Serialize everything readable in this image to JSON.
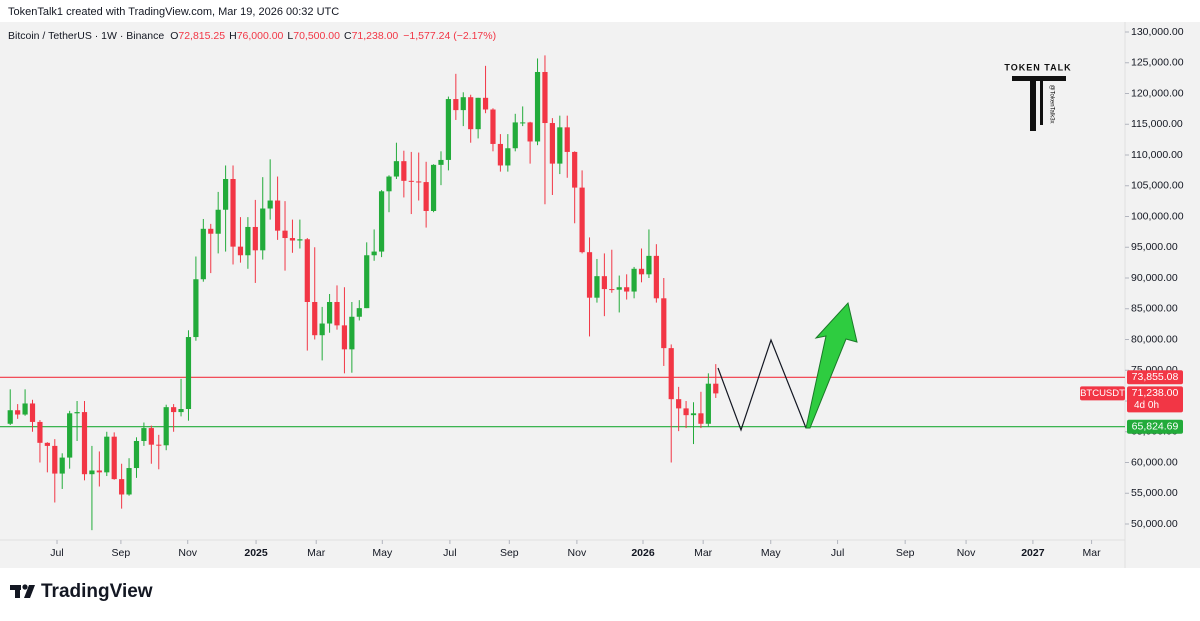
{
  "credit": "TokenTalk1 created with TradingView.com, Mar 19, 2026 00:32 UTC",
  "brand": "TradingView",
  "watermark": {
    "title": "TOKEN TALK",
    "handle": "@TokenTalk3x"
  },
  "chart_data": {
    "type": "candlestick",
    "title": "Bitcoin / TetherUS · 1W · Binance",
    "ohlc_legend": [
      {
        "key": "O",
        "text": "72,815.25"
      },
      {
        "key": "H",
        "text": "76,000.00"
      },
      {
        "key": "L",
        "text": "70,500.00"
      },
      {
        "key": "C",
        "text": "71,238.00"
      }
    ],
    "change": "−1,577.24 (−2.17%)",
    "up_color": "#22ab3a",
    "down_color": "#f23645",
    "open": [
      66300,
      68500,
      67800,
      69600,
      66600,
      63200,
      62700,
      58200,
      60800,
      68000,
      68200,
      58100,
      58700,
      58400,
      64200,
      57300,
      54800,
      59100,
      63500,
      65600,
      62900,
      62800,
      69000,
      68200,
      68700,
      80400,
      89800,
      98000,
      97200,
      101100,
      106100,
      95100,
      93700,
      98300,
      94500,
      101300,
      102600,
      97700,
      96500,
      96100,
      96300,
      86100,
      80700,
      82600,
      86100,
      82300,
      78400,
      83700,
      85100,
      93700,
      94300,
      104100,
      106500,
      109000,
      105800,
      105700,
      105600,
      100900,
      108400,
      109200,
      119100,
      117300,
      119400,
      114200,
      119300,
      117400,
      111800,
      108300,
      111100,
      115300,
      115300,
      112200,
      123500,
      115200,
      108600,
      114500,
      110500,
      104700,
      94200,
      86800,
      90300,
      88200,
      88100,
      88500,
      87800,
      91500,
      90600,
      93600,
      86700,
      78600,
      70300,
      68800,
      67700,
      68000,
      66300,
      72815.25
    ],
    "high": [
      71900,
      69500,
      71900,
      70200,
      66900,
      63300,
      63800,
      61500,
      68400,
      70000,
      70000,
      62700,
      61800,
      65000,
      64900,
      59800,
      60700,
      64100,
      66500,
      66000,
      64500,
      69400,
      69500,
      73600,
      81500,
      93500,
      99600,
      98800,
      104000,
      108300,
      108300,
      99900,
      99900,
      102700,
      106400,
      109300,
      106500,
      102500,
      99500,
      99500,
      96500,
      95000,
      85300,
      87400,
      88800,
      88500,
      86100,
      86400,
      95800,
      97900,
      104300,
      106700,
      112000,
      110700,
      110500,
      110400,
      108900,
      108500,
      110600,
      119500,
      123200,
      120200,
      119800,
      119300,
      124500,
      117600,
      113400,
      113400,
      116700,
      117900,
      115400,
      125700,
      126200,
      116000,
      116400,
      116400,
      110600,
      107500,
      96600,
      93100,
      94000,
      94600,
      90400,
      90600,
      91800,
      94800,
      97900,
      95500,
      90000,
      79200,
      72300,
      70000,
      69800,
      71500,
      74500,
      76000
    ],
    "low": [
      66100,
      67100,
      67600,
      65000,
      60000,
      58400,
      53500,
      55700,
      59000,
      63500,
      57100,
      49000,
      56100,
      57800,
      57200,
      52500,
      54600,
      57500,
      62700,
      59800,
      58900,
      62000,
      65000,
      67500,
      66800,
      79800,
      89400,
      90800,
      94000,
      94300,
      92200,
      92500,
      91500,
      89200,
      93000,
      99500,
      96200,
      91200,
      94100,
      94800,
      78200,
      80000,
      76600,
      81100,
      81600,
      74500,
      74600,
      83100,
      85100,
      92800,
      93400,
      100700,
      106100,
      103100,
      100400,
      102600,
      98200,
      100700,
      105100,
      107500,
      115700,
      114700,
      112000,
      112700,
      116800,
      110600,
      107300,
      107300,
      110600,
      114700,
      108600,
      111600,
      102000,
      103500,
      106900,
      106300,
      98900,
      94000,
      80500,
      86000,
      83800,
      87600,
      84400,
      86500,
      86700,
      89300,
      90000,
      86000,
      75700,
      60000,
      65100,
      65600,
      63000,
      65600,
      65800,
      70500
    ],
    "close": [
      68500,
      67800,
      69600,
      66600,
      63200,
      62700,
      58200,
      60800,
      68000,
      68200,
      58100,
      58700,
      58400,
      64200,
      57300,
      54800,
      59100,
      63500,
      65600,
      62900,
      62800,
      69000,
      68200,
      68700,
      80400,
      89800,
      98000,
      97200,
      101100,
      106100,
      95100,
      93700,
      98300,
      94500,
      101300,
      102600,
      97700,
      96500,
      96100,
      96300,
      86100,
      80700,
      82600,
      86100,
      82300,
      78400,
      83700,
      85100,
      93700,
      94300,
      104100,
      106500,
      109000,
      105800,
      105700,
      105600,
      100900,
      108400,
      109200,
      119100,
      117300,
      119400,
      114200,
      119300,
      117400,
      111800,
      108300,
      111100,
      115300,
      115300,
      112200,
      123500,
      115200,
      108600,
      114500,
      110500,
      104700,
      94200,
      86800,
      90300,
      88200,
      88100,
      88500,
      87800,
      91500,
      90600,
      93600,
      86700,
      78600,
      70300,
      68800,
      67700,
      68000,
      66300,
      72815.25,
      71238
    ],
    "xlim": [
      -0.3,
      150.1
    ],
    "xticks": [
      {
        "value": 6.3,
        "label": "Jul"
      },
      {
        "value": 14.9,
        "label": "Sep"
      },
      {
        "value": 23.9,
        "label": "Nov"
      },
      {
        "value": 33.1,
        "label": "2025"
      },
      {
        "value": 41.2,
        "label": "Mar"
      },
      {
        "value": 50.1,
        "label": "May"
      },
      {
        "value": 59.2,
        "label": "Jul"
      },
      {
        "value": 67.2,
        "label": "Sep"
      },
      {
        "value": 76.3,
        "label": "Nov"
      },
      {
        "value": 85.2,
        "label": "2026"
      },
      {
        "value": 93.3,
        "label": "Mar"
      },
      {
        "value": 102.4,
        "label": "May"
      },
      {
        "value": 111.4,
        "label": "Jul"
      },
      {
        "value": 120.5,
        "label": "Sep"
      },
      {
        "value": 128.7,
        "label": "Nov"
      },
      {
        "value": 137.7,
        "label": "2027"
      },
      {
        "value": 145.6,
        "label": "Mar"
      }
    ],
    "ylim": [
      47400,
      131140
    ],
    "yticks": [
      {
        "value": 50000,
        "label": "50,000.00"
      },
      {
        "value": 55000,
        "label": "55,000.00"
      },
      {
        "value": 60000,
        "label": "60,000.00"
      },
      {
        "value": 65000,
        "label": "65,000.00"
      },
      {
        "value": 70000,
        "label": "70,000.00"
      },
      {
        "value": 75000,
        "label": "75,000.00"
      },
      {
        "value": 80000,
        "label": "80,000.00"
      },
      {
        "value": 85000,
        "label": "85,000.00"
      },
      {
        "value": 90000,
        "label": "90,000.00"
      },
      {
        "value": 95000,
        "label": "95,000.00"
      },
      {
        "value": 100000,
        "label": "100,000.00"
      },
      {
        "value": 105000,
        "label": "105,000.00"
      },
      {
        "value": 110000,
        "label": "110,000.00"
      },
      {
        "value": 115000,
        "label": "115,000.00"
      },
      {
        "value": 120000,
        "label": "120,000.00"
      },
      {
        "value": 125000,
        "label": "125,000.00"
      },
      {
        "value": 130000,
        "label": "130,000.00"
      }
    ],
    "levels": [
      {
        "value": 73855.08,
        "label": "73,855.08",
        "color": "#f23645"
      },
      {
        "value": 65824.69,
        "label": "65,824.69",
        "color": "#22ab3a"
      }
    ],
    "last_price": {
      "value": 71238,
      "symbol": "BTCUSDT",
      "label": "71,238.00",
      "countdown": "4d 0h",
      "color": "#f23645"
    }
  }
}
